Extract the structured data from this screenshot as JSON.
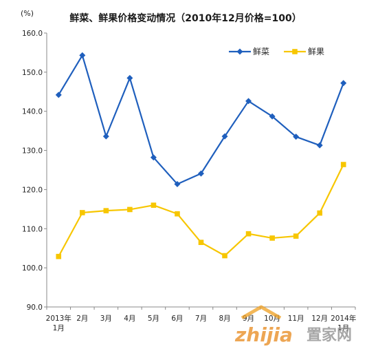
{
  "chart_data": {
    "type": "line",
    "title": "鲜菜、鲜果价格变动情况（2010年12月价格=100）",
    "unit_label": "(%)",
    "categories": [
      "2013年1月",
      "2月",
      "3月",
      "4月",
      "5月",
      "6月",
      "7月",
      "8月",
      "9月",
      "10月",
      "11月",
      "12月",
      "2014年1月"
    ],
    "category_lines": [
      [
        "2013年",
        "1月"
      ],
      [
        "2月"
      ],
      [
        "3月"
      ],
      [
        "4月"
      ],
      [
        "5月"
      ],
      [
        "6月"
      ],
      [
        "7月"
      ],
      [
        "8月"
      ],
      [
        "9月"
      ],
      [
        "10月"
      ],
      [
        "11月"
      ],
      [
        "12月"
      ],
      [
        "2014年",
        "1月"
      ]
    ],
    "ylim": [
      90,
      160
    ],
    "yticks": [
      "90.0",
      "100.0",
      "110.0",
      "120.0",
      "130.0",
      "140.0",
      "150.0",
      "160.0"
    ],
    "grid": false,
    "legend_position": "top-right",
    "series": [
      {
        "name": "鲜菜",
        "color": "#1f5fbd",
        "marker": "diamond",
        "values": [
          144.2,
          154.3,
          133.6,
          148.5,
          128.2,
          121.4,
          124.1,
          133.6,
          142.6,
          138.7,
          133.5,
          131.3,
          147.2
        ]
      },
      {
        "name": "鲜果",
        "color": "#f7c600",
        "marker": "square",
        "values": [
          102.9,
          114.1,
          114.6,
          114.9,
          116.0,
          113.8,
          106.5,
          103.1,
          108.7,
          107.6,
          108.1,
          114.0,
          126.4
        ]
      }
    ]
  },
  "watermark": {
    "brand": "zhijia",
    "suffix": "置家网"
  }
}
